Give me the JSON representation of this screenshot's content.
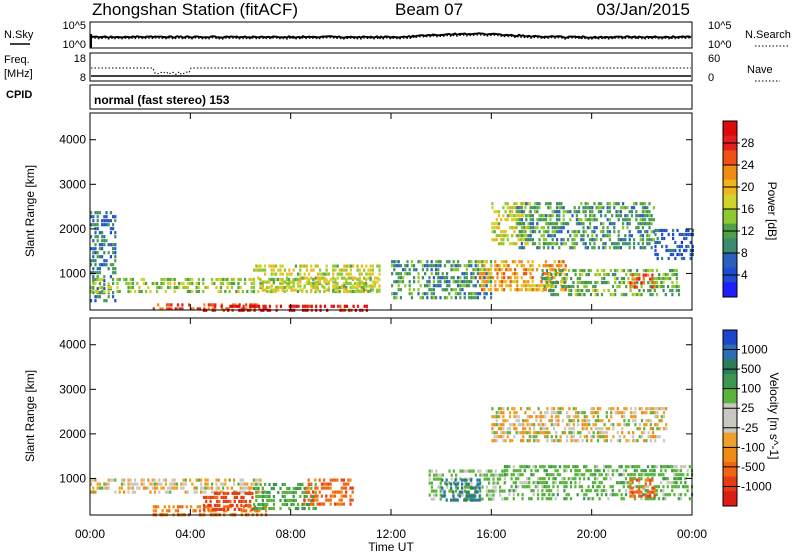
{
  "header": {
    "station": "Zhongshan Station (fitACF)",
    "beam": "Beam 07",
    "date": "03/Jan/2015"
  },
  "noise_panel": {
    "left_label": "N.Sky",
    "right_label": "N.Search",
    "left_ticks": [
      "10^5",
      "10^0"
    ],
    "right_ticks": [
      "10^5",
      "10^0"
    ]
  },
  "freq_panel": {
    "left_label_1": "Freq.",
    "left_label_2": "[MHz]",
    "right_label": "Nave",
    "left_ticks": [
      "18",
      "8"
    ],
    "right_ticks": [
      "60",
      "0"
    ]
  },
  "cpid_panel": {
    "label": "CPID",
    "text": "normal (fast stereo) 153"
  },
  "time_axis": {
    "label": "Time UT",
    "ticks": [
      "00:00",
      "04:00",
      "08:00",
      "12:00",
      "16:00",
      "20:00",
      "00:00"
    ]
  },
  "range_axis": {
    "label": "Slant Range [km]",
    "ticks": [
      "1000",
      "2000",
      "3000",
      "4000"
    ]
  },
  "power_colorbar": {
    "label": "Power [dB]",
    "ticks": [
      "4",
      "8",
      "12",
      "16",
      "20",
      "24",
      "28"
    ],
    "colors": [
      "#1e1eff",
      "#1e4bd2",
      "#2a5fc0",
      "#3c8a6e",
      "#4ea04a",
      "#8cc832",
      "#d2d228",
      "#f0b41e",
      "#f08c14",
      "#f05014",
      "#e61e1e",
      "#dc0a0a"
    ]
  },
  "velocity_colorbar": {
    "label": "Velocity [m s^-1]",
    "ticks": [
      "1000",
      "500",
      "100",
      "25",
      "-25",
      "-100",
      "-500",
      "-1000"
    ],
    "colors": [
      "#1e46c8",
      "#2a6eb4",
      "#2e7d5a",
      "#3c9650",
      "#5ab43c",
      "#c8c8c0",
      "#c8c8c0",
      "#f0a028",
      "#f08c14",
      "#f06414",
      "#e63c14",
      "#dc1e14"
    ]
  },
  "chart_data": {
    "type": "heatmap",
    "x": {
      "label": "Time UT",
      "range": [
        0,
        24
      ],
      "unit": "h",
      "ticks": [
        "00:00",
        "04:00",
        "08:00",
        "12:00",
        "16:00",
        "20:00",
        "00:00"
      ]
    },
    "y": {
      "label": "Slant Range [km]",
      "range": [
        180,
        4600
      ],
      "ticks": [
        1000,
        2000,
        3000,
        4000
      ]
    },
    "panels": [
      {
        "name": "Power [dB]",
        "clim": [
          0,
          30
        ],
        "colorbar_ticks": [
          4,
          8,
          12,
          16,
          20,
          24,
          28
        ],
        "regions": [
          {
            "t": [
              0.0,
              1.0
            ],
            "r": [
              400,
              2400
            ],
            "value": 8
          },
          {
            "t": [
              0.0,
              11.5
            ],
            "r": [
              600,
              900
            ],
            "value": 14
          },
          {
            "t": [
              2.5,
              7.0
            ],
            "r": [
              200,
              330
            ],
            "value": 24
          },
          {
            "t": [
              4.5,
              11.0
            ],
            "r": [
              180,
              300
            ],
            "value": 28
          },
          {
            "t": [
              6.5,
              11.5
            ],
            "r": [
              600,
              1200
            ],
            "value": 16
          },
          {
            "t": [
              12.0,
              16.0
            ],
            "r": [
              450,
              1300
            ],
            "value": 10
          },
          {
            "t": [
              15.5,
              19.0
            ],
            "r": [
              600,
              1300
            ],
            "value": 20
          },
          {
            "t": [
              16.0,
              17.5
            ],
            "r": [
              1700,
              2600
            ],
            "value": 16
          },
          {
            "t": [
              17.0,
              22.5
            ],
            "r": [
              1600,
              2600
            ],
            "value": 10
          },
          {
            "t": [
              18.0,
              23.5
            ],
            "r": [
              500,
              1100
            ],
            "value": 12
          },
          {
            "t": [
              21.5,
              22.5
            ],
            "r": [
              700,
              1000
            ],
            "value": 24
          },
          {
            "t": [
              22.5,
              24.0
            ],
            "r": [
              1300,
              2000
            ],
            "value": 6
          }
        ]
      },
      {
        "name": "Velocity [m s^-1]",
        "clim": [
          -1000,
          1000
        ],
        "colorbar_ticks": [
          1000,
          500,
          100,
          25,
          -25,
          -100,
          -500,
          -1000
        ],
        "regions": [
          {
            "t": [
              0.0,
              7.0
            ],
            "r": [
              700,
              1000
            ],
            "value": 0
          },
          {
            "t": [
              2.5,
              7.0
            ],
            "r": [
              180,
              400
            ],
            "value": -300
          },
          {
            "t": [
              4.5,
              6.5
            ],
            "r": [
              300,
              700
            ],
            "value": -600
          },
          {
            "t": [
              6.5,
              9.0
            ],
            "r": [
              300,
              900
            ],
            "value": 300
          },
          {
            "t": [
              8.5,
              10.5
            ],
            "r": [
              400,
              1000
            ],
            "value": -400
          },
          {
            "t": [
              13.5,
              16.5
            ],
            "r": [
              500,
              1200
            ],
            "value": 150
          },
          {
            "t": [
              14.0,
              15.5
            ],
            "r": [
              500,
              1000
            ],
            "value": 800
          },
          {
            "t": [
              16.0,
              23.0
            ],
            "r": [
              1800,
              2600
            ],
            "value": 0
          },
          {
            "t": [
              16.5,
              24.0
            ],
            "r": [
              500,
              1300
            ],
            "value": 200
          },
          {
            "t": [
              21.5,
              22.5
            ],
            "r": [
              600,
              1000
            ],
            "value": -400
          }
        ]
      }
    ]
  }
}
